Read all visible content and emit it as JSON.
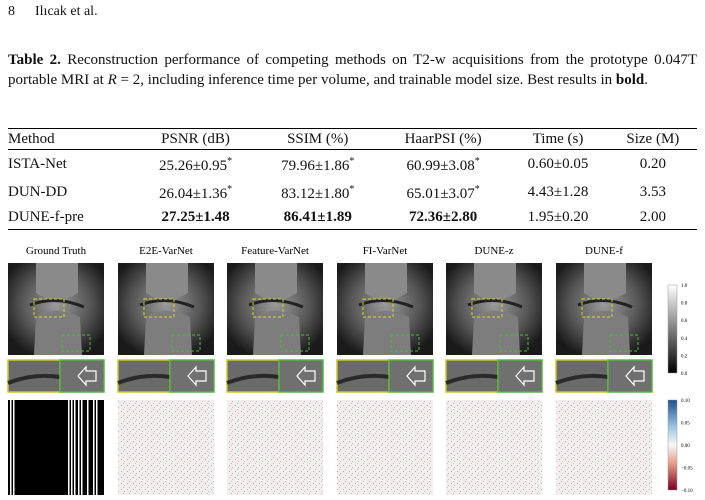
{
  "header": {
    "page_number": "8",
    "running_head": "Ilıcak et al."
  },
  "caption": {
    "label": "Table 2.",
    "text_1": "Reconstruction performance of competing methods on T2-w acquisitions from the prototype 0.047T portable MRI at ",
    "math_var": "R",
    "text_2": " = 2, including inference time per volume, and trainable model size. Best results in ",
    "bold_word": "bold",
    "text_3": "."
  },
  "table": {
    "columns": [
      "Method",
      "PSNR (dB)",
      "SSIM (%)",
      "HaarPSI (%)",
      "Time (s)",
      "Size (M)"
    ],
    "rows": [
      [
        {
          "text": "ISTA-Net"
        },
        {
          "text": "25.26±0.95",
          "sup": "*"
        },
        {
          "text": "79.96±1.86",
          "sup": "*"
        },
        {
          "text": "60.99±3.08",
          "sup": "*"
        },
        {
          "text": "0.60±0.05"
        },
        {
          "text": "0.20"
        }
      ],
      [
        {
          "text": "DUN-DD"
        },
        {
          "text": "26.04±1.36",
          "sup": "*"
        },
        {
          "text": "83.12±1.80",
          "sup": "*"
        },
        {
          "text": "65.01±3.07",
          "sup": "*"
        },
        {
          "text": "4.43±1.28"
        },
        {
          "text": "3.53"
        }
      ],
      [
        {
          "text": "DUNE-f-pre"
        },
        {
          "text": "27.25±1.48",
          "bold": true
        },
        {
          "text": "86.41±1.89",
          "bold": true
        },
        {
          "text": "72.36±2.80",
          "bold": true
        },
        {
          "text": "1.95±0.20"
        },
        {
          "text": "2.00"
        }
      ]
    ]
  },
  "figure": {
    "column_labels": [
      "Ground Truth",
      "E2E-VarNet",
      "Feature-VarNet",
      "FI-VarNet",
      "DUNE-z",
      "DUNE-f"
    ],
    "colorbar_intensity_ticks": [
      "0.0",
      "0.2",
      "0.4",
      "0.6",
      "0.8",
      "1.0"
    ],
    "colorbar_error_ticks": [
      "−0.10",
      "−0.05",
      "0.00",
      "0.05",
      "0.10"
    ]
  }
}
